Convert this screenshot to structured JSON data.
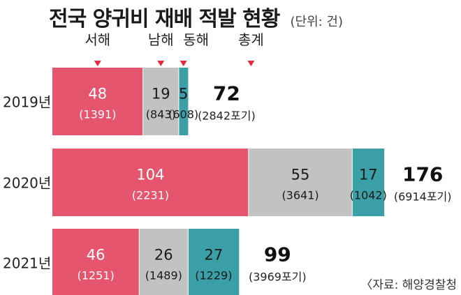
{
  "title": "전국 양귀비 재배 적발 현황",
  "unit": "(단위: 건)",
  "source": "〈자료: 해양경찰청",
  "colors": {
    "west": "#e5556d",
    "south": "#c2c2c2",
    "east": "#3a9fa6",
    "marker": "#e8293e",
    "text_on_color": "#ffffff",
    "text_dark": "#1a1a1a"
  },
  "chart_data": {
    "type": "bar",
    "orientation": "horizontal",
    "stacked": true,
    "title": "전국 양귀비 재배 적발 현황",
    "unit_label": "(단위: 건)",
    "categories": [
      "2019년",
      "2020년",
      "2021년"
    ],
    "series": [
      {
        "name": "서해",
        "values": [
          48,
          104,
          46
        ],
        "sub": [
          "(1391)",
          "(2231)",
          "(1251)"
        ]
      },
      {
        "name": "남해",
        "values": [
          19,
          55,
          26
        ],
        "sub": [
          "(843)",
          "(3641)",
          "(1489)"
        ]
      },
      {
        "name": "동해",
        "values": [
          5,
          17,
          27
        ],
        "sub": [
          "(608)",
          "(1042)",
          "(1229)"
        ]
      }
    ],
    "totals_name": "총계",
    "totals": [
      72,
      176,
      99
    ],
    "totals_sub": [
      "(2842포기)",
      "(6914포기)",
      "(3969포기)"
    ],
    "legend_placement": "top",
    "grid": false
  }
}
